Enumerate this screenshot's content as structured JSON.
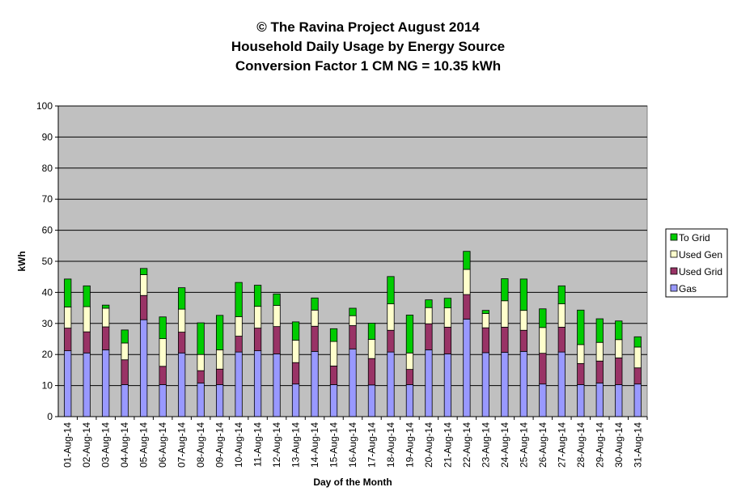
{
  "chart_data": {
    "type": "bar",
    "stacked": true,
    "title_lines": [
      "© The Ravina Project August 2014",
      "Household Daily Usage by Energy Source",
      "Conversion Factor 1 CM NG = 10.35 kWh"
    ],
    "xlabel": "Day of the Month",
    "ylabel": "kWh",
    "ylim": [
      0,
      100
    ],
    "yticks": [
      0,
      10,
      20,
      30,
      40,
      50,
      60,
      70,
      80,
      90,
      100
    ],
    "grid": true,
    "legend_position": "right",
    "categories": [
      "01-Aug-14",
      "02-Aug-14",
      "03-Aug-14",
      "04-Aug-14",
      "05-Aug-14",
      "06-Aug-14",
      "07-Aug-14",
      "08-Aug-14",
      "09-Aug-14",
      "10-Aug-14",
      "11-Aug-14",
      "12-Aug-14",
      "13-Aug-14",
      "14-Aug-14",
      "15-Aug-14",
      "16-Aug-14",
      "17-Aug-14",
      "18-Aug-14",
      "19-Aug-14",
      "20-Aug-14",
      "21-Aug-14",
      "22-Aug-14",
      "23-Aug-14",
      "24-Aug-14",
      "25-Aug-14",
      "26-Aug-14",
      "27-Aug-14",
      "28-Aug-14",
      "29-Aug-14",
      "30-Aug-14",
      "31-Aug-14"
    ],
    "series": [
      {
        "name": "Gas",
        "color": "#9999ff",
        "values": [
          21.2,
          20.5,
          21.5,
          10.3,
          31.2,
          10.3,
          20.5,
          10.8,
          10.3,
          20.8,
          21.2,
          20.2,
          10.5,
          21.0,
          10.3,
          21.8,
          10.2,
          20.8,
          10.3,
          21.5,
          20.2,
          31.4,
          20.6,
          20.7,
          21.0,
          10.5,
          20.8,
          10.3,
          10.8,
          10.3,
          10.5
        ]
      },
      {
        "name": "Used Grid",
        "color": "#993366",
        "values": [
          7.3,
          6.8,
          7.4,
          8.0,
          7.8,
          5.9,
          6.7,
          4.0,
          5.0,
          5.1,
          7.3,
          8.8,
          6.9,
          8.1,
          6.0,
          7.5,
          8.5,
          7.0,
          4.9,
          8.4,
          8.6,
          7.9,
          8.0,
          8.1,
          6.8,
          9.9,
          8.0,
          6.8,
          7.1,
          8.6,
          5.2
        ]
      },
      {
        "name": "Used Gen",
        "color": "#ffffcc",
        "values": [
          6.8,
          8.1,
          6.0,
          5.4,
          6.7,
          8.9,
          7.4,
          5.2,
          6.2,
          6.3,
          7.0,
          6.8,
          7.2,
          5.2,
          7.9,
          3.2,
          6.2,
          8.5,
          5.3,
          5.2,
          6.2,
          8.1,
          4.6,
          8.5,
          6.4,
          8.3,
          7.5,
          6.1,
          6.0,
          5.9,
          6.7
        ]
      },
      {
        "name": "To Grid",
        "color": "#00cc00",
        "values": [
          9.0,
          6.7,
          1.0,
          4.2,
          2.0,
          7.0,
          6.9,
          10.2,
          11.1,
          11.0,
          6.8,
          3.7,
          5.9,
          3.9,
          4.1,
          2.4,
          5.2,
          8.8,
          12.2,
          2.5,
          3.1,
          5.8,
          1.0,
          7.1,
          10.1,
          6.0,
          5.8,
          11.1,
          7.6,
          6.0,
          3.3
        ]
      }
    ]
  }
}
